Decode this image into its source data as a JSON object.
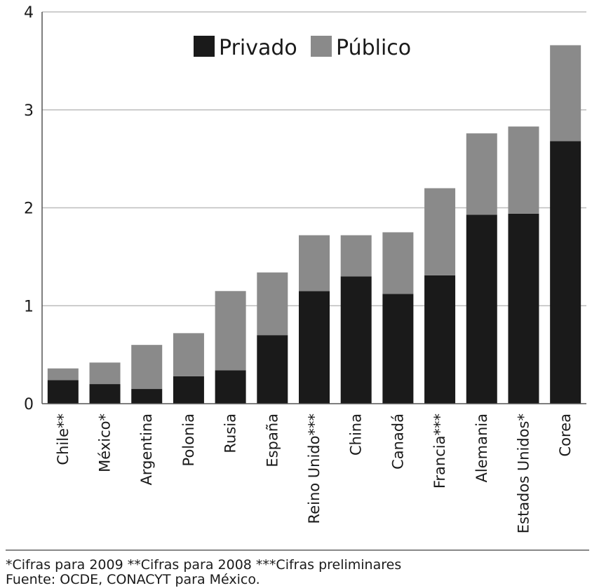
{
  "chart_data": {
    "type": "bar",
    "stacked": true,
    "categories": [
      "Chile**",
      "México*",
      "Argentina",
      "Polonia",
      "Rusia",
      "España",
      "Reino Unido***",
      "China",
      "Canadá",
      "Francia***",
      "Alemania",
      "Estados Unidos*",
      "Corea"
    ],
    "series": [
      {
        "name": "Privado",
        "color": "#1a1a1a",
        "values": [
          0.24,
          0.2,
          0.15,
          0.28,
          0.34,
          0.7,
          1.15,
          1.3,
          1.12,
          1.31,
          1.93,
          1.94,
          2.68
        ]
      },
      {
        "name": "Público",
        "color": "#8a8a8a",
        "values": [
          0.12,
          0.22,
          0.45,
          0.44,
          0.81,
          0.64,
          0.57,
          0.42,
          0.63,
          0.89,
          0.83,
          0.89,
          0.98
        ]
      }
    ],
    "yticks": [
      "0",
      "1",
      "2",
      "3",
      "4"
    ],
    "ylim": [
      0,
      4
    ],
    "grid": true,
    "legend_position": "top"
  },
  "footnotes": {
    "line1": "*Cifras para 2009  **Cifras para 2008  ***Cifras preliminares",
    "line2": "Fuente: OCDE, CONACYT para México."
  }
}
